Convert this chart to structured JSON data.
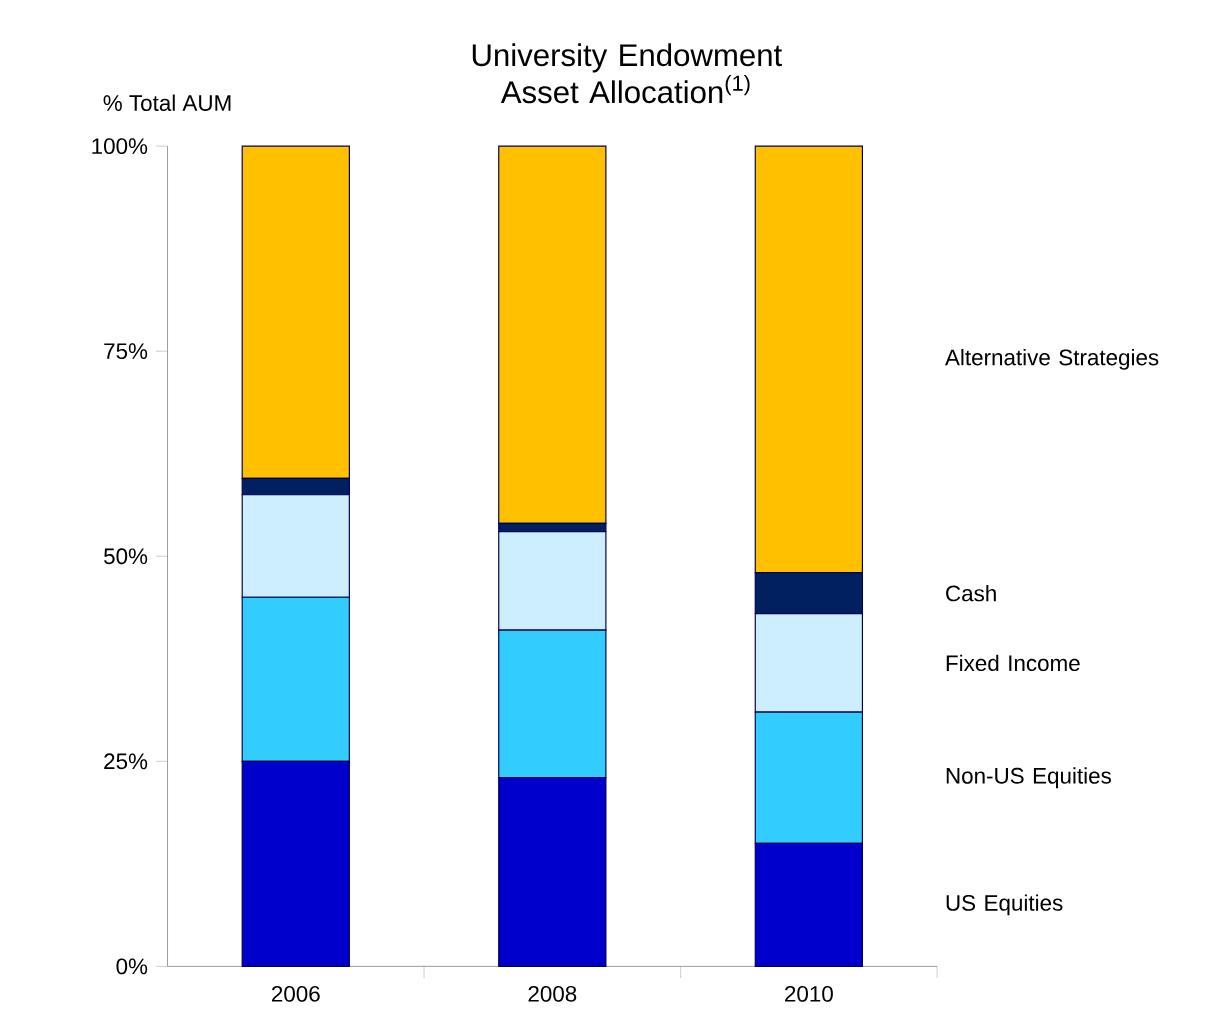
{
  "chart_data": {
    "type": "bar",
    "stacked": true,
    "title": "University Endowment Asset Allocation$^{(1)}$",
    "ylabel": "% Total AUM",
    "categories": [
      "2006",
      "2008",
      "2010"
    ],
    "series": [
      {
        "name": "US Equities",
        "color": "#0000cc",
        "values": [
          25,
          23,
          15
        ]
      },
      {
        "name": "Non-US Equities",
        "color": "#33ccff",
        "values": [
          20,
          18,
          16
        ]
      },
      {
        "name": "Fixed Income",
        "color": "#cceeff",
        "values": [
          12.5,
          12,
          12
        ]
      },
      {
        "name": "Cash",
        "color": "#002060",
        "values": [
          2,
          1,
          5
        ]
      },
      {
        "name": "Alternative Strategies",
        "color": "#ffc000",
        "values": [
          40.5,
          46,
          52
        ]
      }
    ],
    "ylim": [
      0,
      100
    ],
    "yticks": [
      {
        "value": 0,
        "label": "0%"
      },
      {
        "value": 25,
        "label": "25%"
      },
      {
        "value": 50,
        "label": "50%"
      },
      {
        "value": 75,
        "label": "75%"
      },
      {
        "value": 100,
        "label": "100%"
      }
    ],
    "grid": false,
    "legend": "right"
  }
}
